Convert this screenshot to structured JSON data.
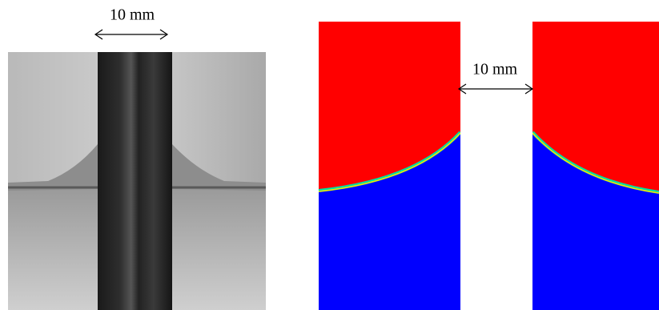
{
  "panels": [
    {
      "label": "10 mm"
    },
    {
      "label": "10 mm"
    }
  ]
}
